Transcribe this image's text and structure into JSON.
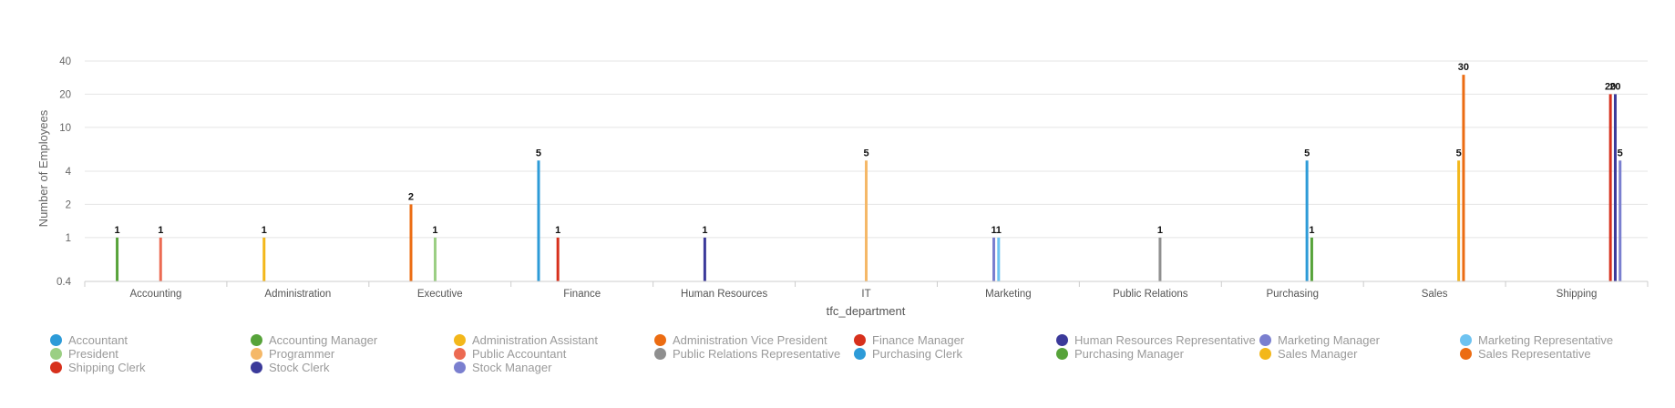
{
  "chart_data": {
    "type": "bar",
    "xlabel": "tfc_department",
    "ylabel": "Number of Employees",
    "y_scale": "log",
    "ylim": [
      0.4,
      40
    ],
    "y_ticks": [
      "0.4",
      "1",
      "2",
      "4",
      "10",
      "20",
      "40"
    ],
    "grid": true,
    "legend_position": "bottom",
    "categories": [
      "Accounting",
      "Administration",
      "Executive",
      "Finance",
      "Human Resources",
      "IT",
      "Marketing",
      "Public Relations",
      "Purchasing",
      "Sales",
      "Shipping"
    ],
    "series": [
      {
        "name": "Accountant",
        "color": "#2d9bd8",
        "values": [
          null,
          null,
          null,
          5,
          null,
          null,
          null,
          null,
          null,
          null,
          null
        ]
      },
      {
        "name": "Accounting Manager",
        "color": "#57a33a",
        "values": [
          1,
          null,
          null,
          null,
          null,
          null,
          null,
          null,
          null,
          null,
          null
        ]
      },
      {
        "name": "Administration Assistant",
        "color": "#f3b71a",
        "values": [
          null,
          1,
          null,
          null,
          null,
          null,
          null,
          null,
          null,
          null,
          null
        ]
      },
      {
        "name": "Administration Vice President",
        "color": "#ec6c12",
        "values": [
          null,
          null,
          2,
          null,
          null,
          null,
          null,
          null,
          null,
          null,
          null
        ]
      },
      {
        "name": "Finance Manager",
        "color": "#d7301c",
        "values": [
          null,
          null,
          null,
          1,
          null,
          null,
          null,
          null,
          null,
          null,
          null
        ]
      },
      {
        "name": "Human Resources Representative",
        "color": "#3b3a9a",
        "values": [
          null,
          null,
          null,
          null,
          1,
          null,
          null,
          null,
          null,
          null,
          null
        ]
      },
      {
        "name": "Marketing Manager",
        "color": "#7a7fcf",
        "values": [
          null,
          null,
          null,
          null,
          null,
          null,
          1,
          null,
          null,
          null,
          null
        ]
      },
      {
        "name": "Marketing Representative",
        "color": "#6ec3f1",
        "values": [
          null,
          null,
          null,
          null,
          null,
          null,
          1,
          null,
          null,
          null,
          null
        ]
      },
      {
        "name": "President",
        "color": "#9bcf83",
        "values": [
          null,
          null,
          1,
          null,
          null,
          null,
          null,
          null,
          null,
          null,
          null
        ]
      },
      {
        "name": "Programmer",
        "color": "#f5b868",
        "values": [
          null,
          null,
          null,
          null,
          null,
          5,
          null,
          null,
          null,
          null,
          null
        ]
      },
      {
        "name": "Public Accountant",
        "color": "#ec6a52",
        "values": [
          1,
          null,
          null,
          null,
          null,
          null,
          null,
          null,
          null,
          null,
          null
        ]
      },
      {
        "name": "Public Relations Representative",
        "color": "#8f8f8f",
        "values": [
          null,
          null,
          null,
          null,
          null,
          null,
          null,
          1,
          null,
          null,
          null
        ]
      },
      {
        "name": "Purchasing Clerk",
        "color": "#2d9bd8",
        "values": [
          null,
          null,
          null,
          null,
          null,
          null,
          null,
          null,
          5,
          null,
          null
        ]
      },
      {
        "name": "Purchasing Manager",
        "color": "#57a33a",
        "values": [
          null,
          null,
          null,
          null,
          null,
          null,
          null,
          null,
          1,
          null,
          null
        ]
      },
      {
        "name": "Sales Manager",
        "color": "#f3b71a",
        "values": [
          null,
          null,
          null,
          null,
          null,
          null,
          null,
          null,
          null,
          5,
          null
        ]
      },
      {
        "name": "Sales Representative",
        "color": "#ec6c12",
        "values": [
          null,
          null,
          null,
          null,
          null,
          null,
          null,
          null,
          null,
          30,
          null
        ]
      },
      {
        "name": "Shipping Clerk",
        "color": "#d7301c",
        "values": [
          null,
          null,
          null,
          null,
          null,
          null,
          null,
          null,
          null,
          null,
          20
        ]
      },
      {
        "name": "Stock Clerk",
        "color": "#3b3a9a",
        "values": [
          null,
          null,
          null,
          null,
          null,
          null,
          null,
          null,
          null,
          null,
          20
        ]
      },
      {
        "name": "Stock Manager",
        "color": "#7a7fcf",
        "values": [
          null,
          null,
          null,
          null,
          null,
          null,
          null,
          null,
          null,
          null,
          5
        ]
      }
    ]
  }
}
